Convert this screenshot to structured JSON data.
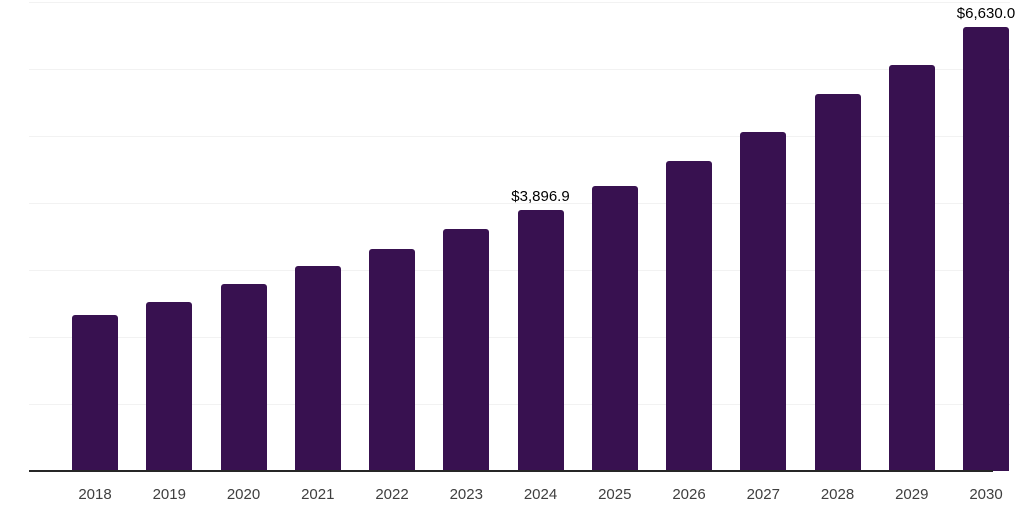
{
  "chart_data": {
    "type": "bar",
    "title": "",
    "xlabel": "",
    "ylabel": "",
    "categories": [
      "2018",
      "2019",
      "2020",
      "2021",
      "2022",
      "2023",
      "2024",
      "2025",
      "2026",
      "2027",
      "2028",
      "2029",
      "2030"
    ],
    "values": [
      2330,
      2517,
      2794,
      3055,
      3309,
      3606,
      3896.9,
      4260,
      4631,
      5057,
      5632,
      6058,
      6630
    ],
    "data_labels": [
      {
        "category": "2024",
        "text": "$3,896.9"
      },
      {
        "category": "2030",
        "text": "$6,630.0"
      }
    ],
    "ylim": [
      0,
      7000
    ],
    "gridline_step": 1000,
    "grid": "horizontal",
    "legend": "none",
    "colors": {
      "bar": "#381150",
      "gridline": "#f2f2f2",
      "axis_line": "#262626",
      "x_label": "#3f3f3f",
      "data_label": "#000000",
      "background": "#ffffff"
    }
  }
}
